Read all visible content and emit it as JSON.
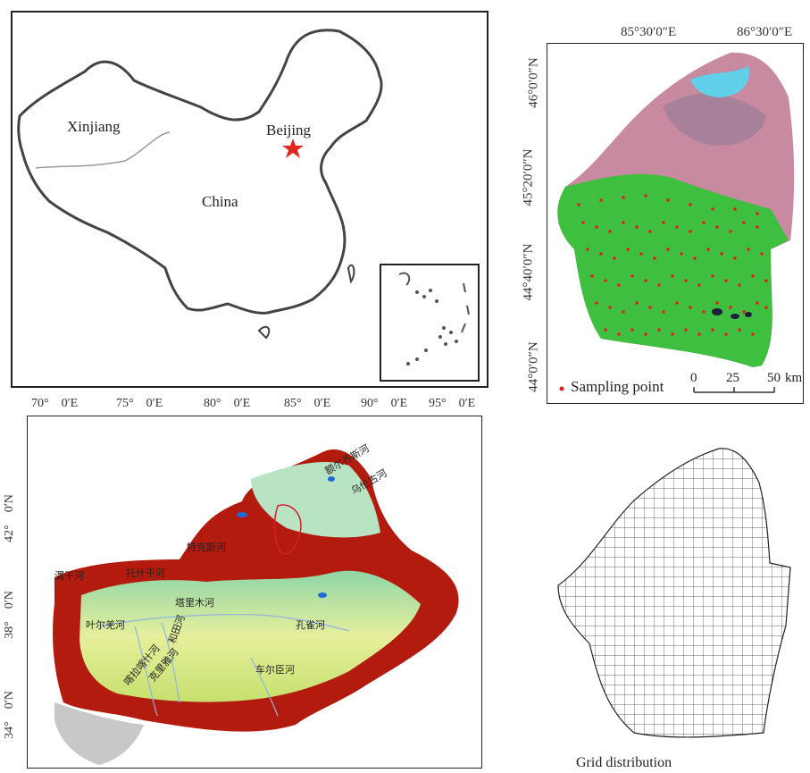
{
  "china_map": {
    "labels": {
      "xinjiang": "Xinjiang",
      "beijing": "Beijing",
      "china": "China"
    },
    "lon_ticks": [
      "70°　0′E",
      "75°　0′E",
      "80°　0′E",
      "85°　0′E",
      "90°　0′E",
      "95°　0′E"
    ]
  },
  "satellite_map": {
    "lon_ticks": [
      "85°30′0″E",
      "86°30′0″E"
    ],
    "lat_ticks": [
      "46°0′0″N",
      "45°20′0″N",
      "44°40′0″N",
      "44°0′0″N"
    ],
    "legend_label": "Sampling point",
    "scale_ticks": [
      "0",
      "25",
      "50"
    ],
    "scale_unit": "km",
    "colors": {
      "cropland": "#3fbf3f",
      "sample": "#e02020",
      "water": "#5fd0e8",
      "desert": "#c88aa0"
    }
  },
  "xinjiang_dem": {
    "lat_ticks": [
      "42°　0′N",
      "38°　0′N",
      "34°　0′N"
    ],
    "rivers": [
      "额尔齐斯河",
      "乌伦古河",
      "特克斯河",
      "托什干河",
      "塔里木河",
      "叶尔羌河",
      "和田河",
      "喀拉喀什河",
      "克里雅河",
      "车尔臣河",
      "孔雀河",
      "渭干河"
    ]
  },
  "grid": {
    "caption": "Grid distribution"
  }
}
